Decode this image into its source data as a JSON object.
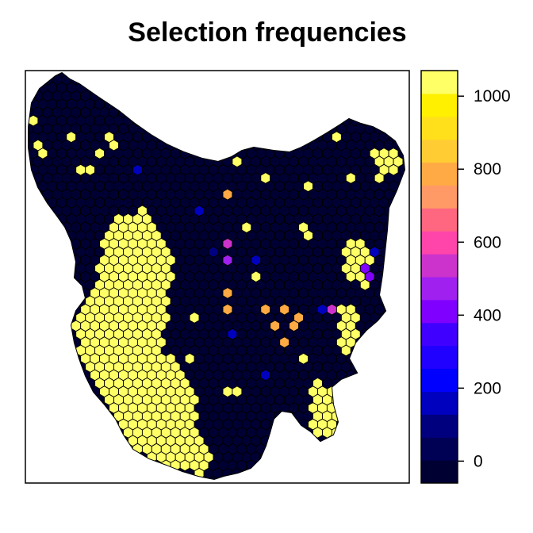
{
  "title": "Selection frequencies",
  "legend": {
    "tick_labels": [
      "0",
      "200",
      "400",
      "600",
      "800",
      "1000"
    ],
    "tick_values": [
      0,
      200,
      400,
      600,
      800,
      1000
    ],
    "range": [
      -60,
      1070
    ],
    "colors": [
      "#000033",
      "#000055",
      "#00007F",
      "#0000BF",
      "#0000FF",
      "#2000FF",
      "#4000FF",
      "#8000FF",
      "#A020F0",
      "#CC33CC",
      "#FF44AA",
      "#FF6680",
      "#FF9966",
      "#FFAA44",
      "#FFCC33",
      "#FFE01A",
      "#FFF000",
      "#FFFF66"
    ]
  },
  "map": {
    "region": "Tasmania",
    "base_color": "#000033",
    "high_color": "#FFFF66"
  }
}
